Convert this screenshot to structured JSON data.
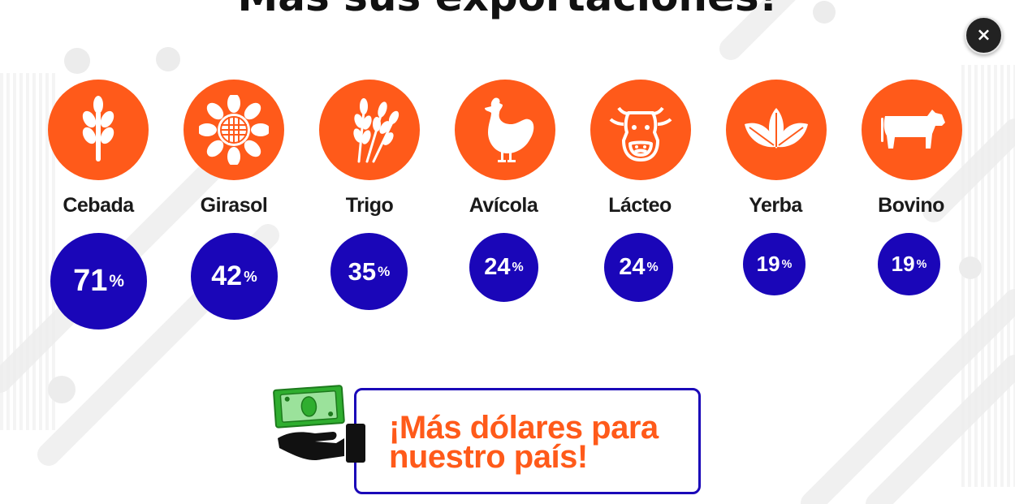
{
  "title": "Más sus exportaciones!",
  "close_button": {
    "label": "×",
    "icon": "close-icon"
  },
  "colors": {
    "accent_orange": "#ff5a1a",
    "accent_blue": "#1a06b8"
  },
  "products": [
    {
      "name": "Cebada",
      "icon": "barley-icon",
      "percent_value": "71",
      "percent_symbol": "%"
    },
    {
      "name": "Girasol",
      "icon": "sunflower-icon",
      "percent_value": "42",
      "percent_symbol": "%"
    },
    {
      "name": "Trigo",
      "icon": "wheat-icon",
      "percent_value": "35",
      "percent_symbol": "%"
    },
    {
      "name": "Avícola",
      "icon": "chicken-icon",
      "percent_value": "24",
      "percent_symbol": "%"
    },
    {
      "name": "Lácteo",
      "icon": "cow-face-icon",
      "percent_value": "24",
      "percent_symbol": "%"
    },
    {
      "name": "Yerba",
      "icon": "leaves-icon",
      "percent_value": "19",
      "percent_symbol": "%"
    },
    {
      "name": "Bovino",
      "icon": "cattle-icon",
      "percent_value": "19",
      "percent_symbol": "%"
    }
  ],
  "banner": {
    "line1": "¡Más dólares para",
    "line2": "nuestro país!",
    "icon": "money-hand-icon"
  }
}
